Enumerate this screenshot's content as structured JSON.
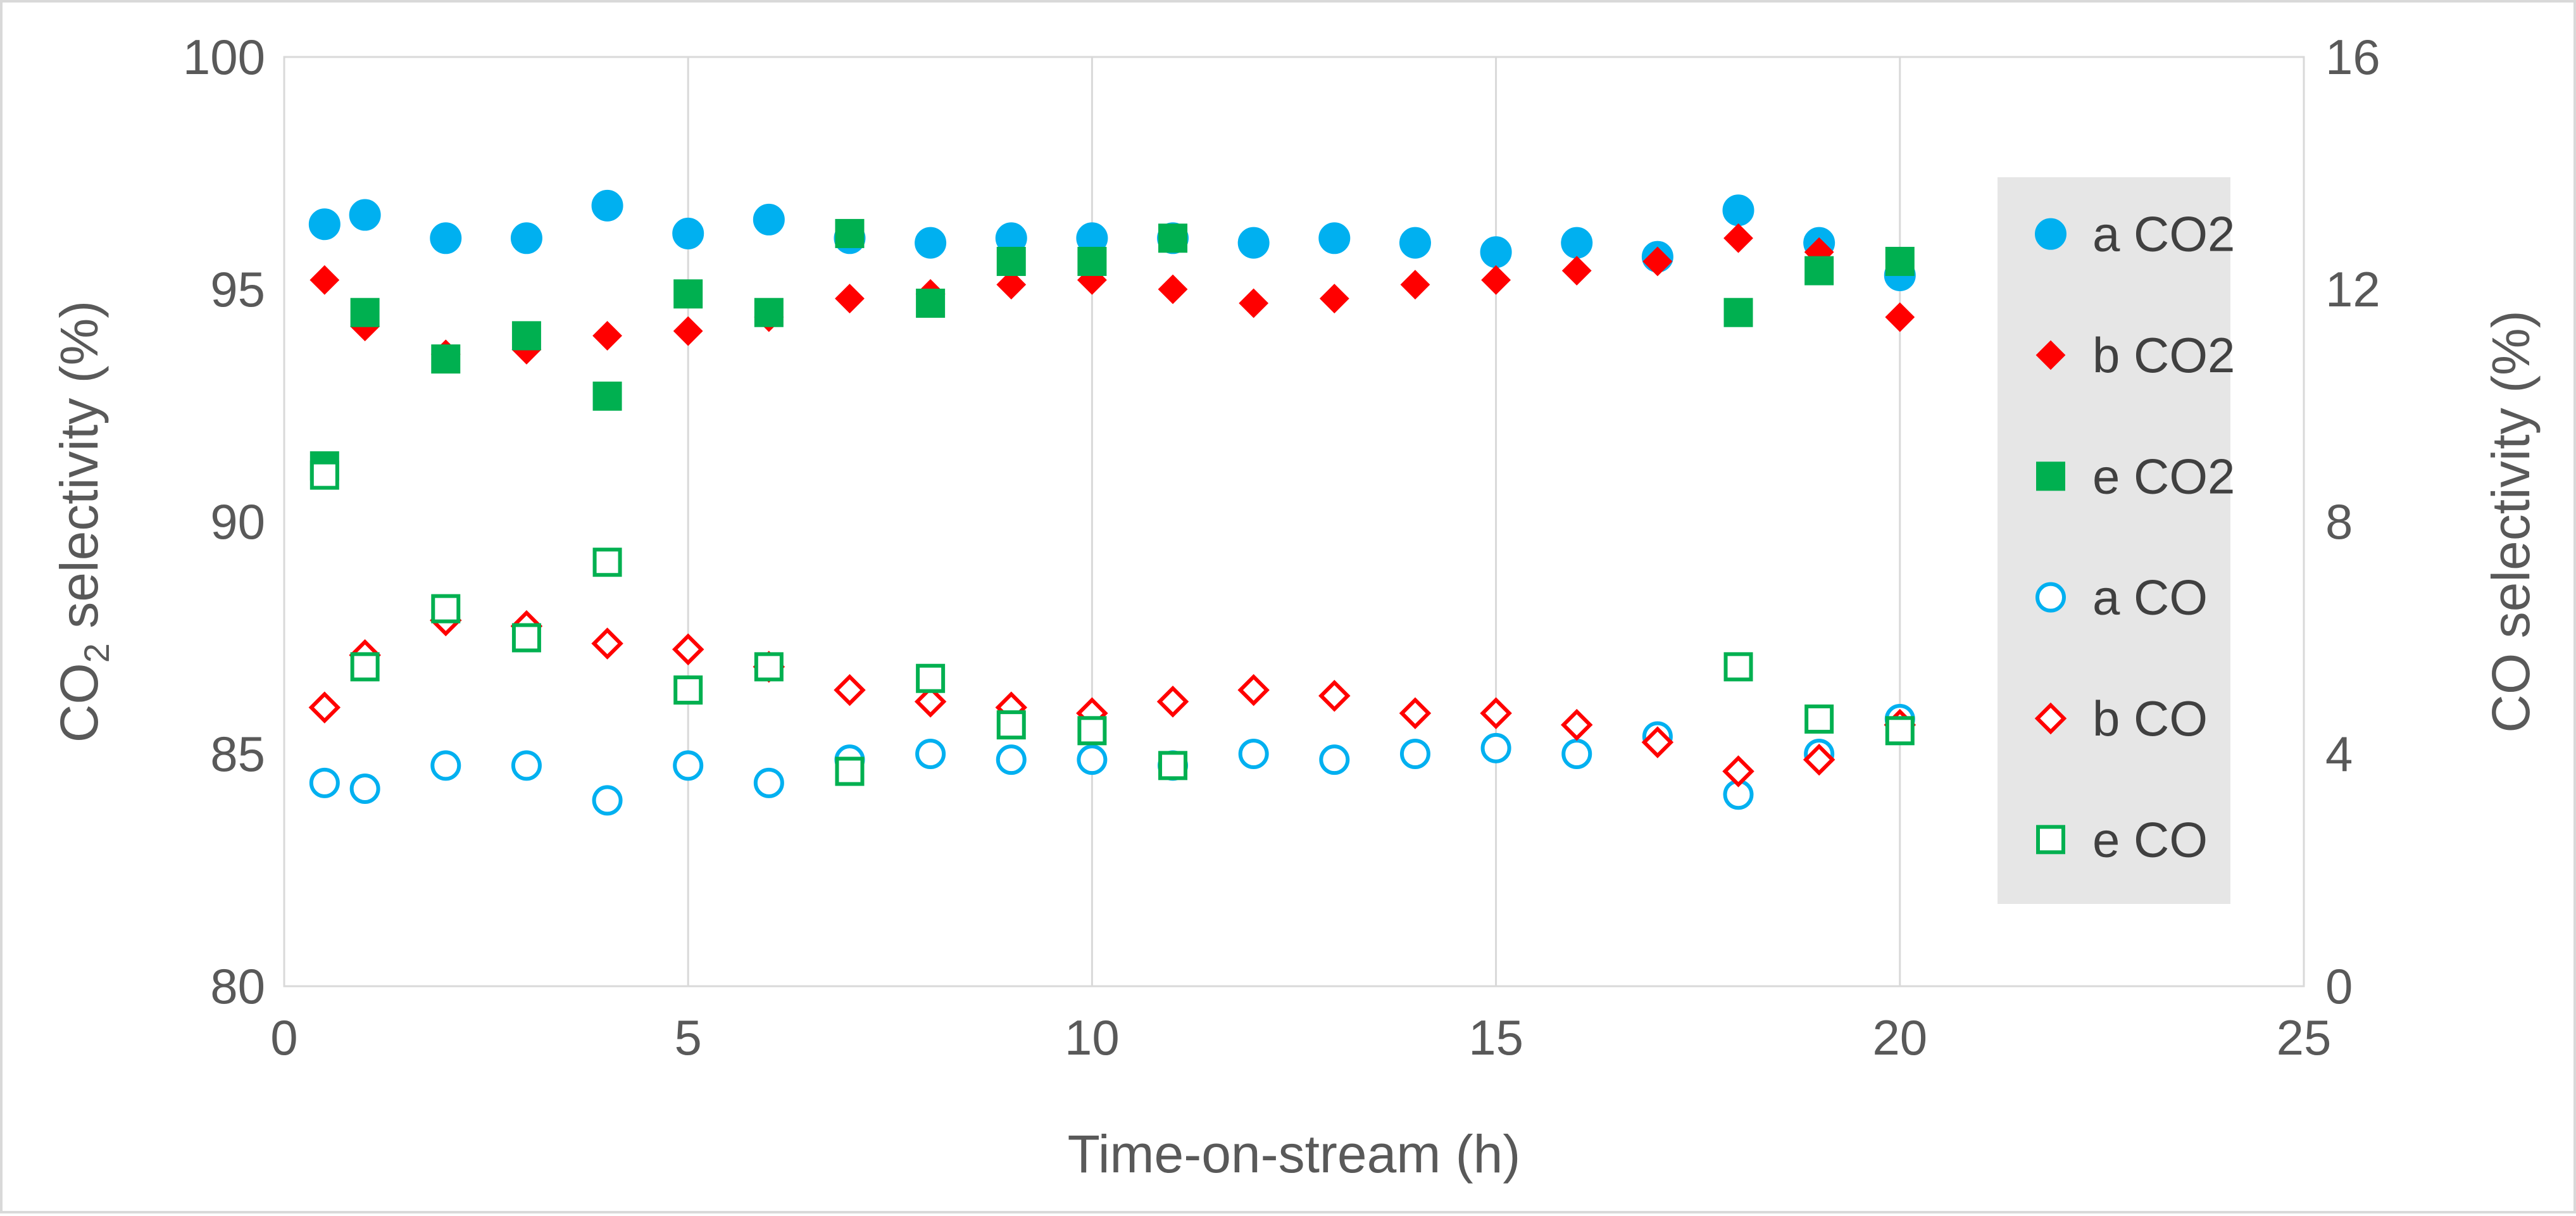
{
  "chart_data": {
    "type": "scatter",
    "title": "",
    "xlabel": "Time-on-stream (h)",
    "ylabel_left": {
      "base": "CO",
      "sub": "2",
      "rest": " selectivity (%)"
    },
    "ylabel_right": "CO selectivity (%)",
    "xlim": [
      0,
      25
    ],
    "ylim_left": [
      80,
      100
    ],
    "ylim_right": [
      0,
      16
    ],
    "x_ticks": [
      "0",
      "5",
      "10",
      "15",
      "20",
      "25"
    ],
    "y_left_ticks": [
      "80",
      "85",
      "90",
      "95",
      "100"
    ],
    "y_right_ticks": [
      "0",
      "4",
      "8",
      "12",
      "16"
    ],
    "grid": "vertical",
    "legend_position": "right",
    "series": [
      {
        "name": "a CO2",
        "axis": "left",
        "marker": "circle",
        "filled": true,
        "color": "#00b0f0",
        "x": [
          0.5,
          1,
          2,
          3,
          4,
          5,
          6,
          7,
          8,
          9,
          10,
          11,
          12,
          13,
          14,
          15,
          16,
          17,
          18,
          19,
          20
        ],
        "y": [
          96.4,
          96.6,
          96.1,
          96.1,
          96.8,
          96.2,
          96.5,
          96.1,
          96.0,
          96.1,
          96.1,
          96.1,
          96.0,
          96.1,
          96.0,
          95.8,
          96.0,
          95.7,
          96.7,
          96.0,
          95.3
        ]
      },
      {
        "name": "b CO2",
        "axis": "left",
        "marker": "diamond",
        "filled": true,
        "color": "#ff0000",
        "x": [
          0.5,
          1,
          2,
          3,
          4,
          5,
          6,
          7,
          8,
          9,
          10,
          11,
          12,
          13,
          14,
          15,
          16,
          17,
          18,
          19,
          20
        ],
        "y": [
          95.2,
          94.2,
          93.6,
          93.7,
          94.0,
          94.1,
          94.4,
          94.8,
          94.9,
          95.1,
          95.2,
          95.0,
          94.7,
          94.8,
          95.1,
          95.2,
          95.4,
          95.6,
          96.1,
          95.8,
          94.4
        ]
      },
      {
        "name": "e CO2",
        "axis": "left",
        "marker": "square",
        "filled": true,
        "color": "#00b050",
        "x": [
          0.5,
          1,
          2,
          3,
          4,
          5,
          6,
          7,
          8,
          9,
          10,
          11,
          18,
          19,
          20
        ],
        "y": [
          91.2,
          94.5,
          93.5,
          94.0,
          92.7,
          94.9,
          94.5,
          96.2,
          94.7,
          95.6,
          95.6,
          96.1,
          94.5,
          95.4,
          95.6
        ]
      },
      {
        "name": "a CO",
        "axis": "right",
        "marker": "circle",
        "filled": false,
        "color": "#00b0f0",
        "x": [
          0.5,
          1,
          2,
          3,
          4,
          5,
          6,
          7,
          8,
          9,
          10,
          11,
          12,
          13,
          14,
          15,
          16,
          17,
          18,
          19,
          20
        ],
        "y": [
          3.5,
          3.4,
          3.8,
          3.8,
          3.2,
          3.8,
          3.5,
          3.9,
          4.0,
          3.9,
          3.9,
          3.8,
          4.0,
          3.9,
          4.0,
          4.1,
          4.0,
          4.3,
          3.3,
          4.0,
          4.6
        ]
      },
      {
        "name": "b CO",
        "axis": "right",
        "marker": "diamond",
        "filled": false,
        "color": "#ff0000",
        "x": [
          0.5,
          1,
          2,
          3,
          4,
          5,
          6,
          7,
          8,
          9,
          10,
          11,
          12,
          13,
          14,
          15,
          16,
          17,
          18,
          19,
          20
        ],
        "y": [
          4.8,
          5.7,
          6.3,
          6.2,
          5.9,
          5.8,
          5.5,
          5.1,
          4.9,
          4.8,
          4.7,
          4.9,
          5.1,
          5.0,
          4.7,
          4.7,
          4.5,
          4.2,
          3.7,
          3.9,
          4.5
        ]
      },
      {
        "name": "e CO",
        "axis": "right",
        "marker": "square",
        "filled": false,
        "color": "#00b050",
        "x": [
          0.5,
          1,
          2,
          3,
          4,
          5,
          6,
          7,
          8,
          9,
          10,
          11,
          18,
          19,
          20
        ],
        "y": [
          8.8,
          5.5,
          6.5,
          6.0,
          7.3,
          5.1,
          5.5,
          3.7,
          5.3,
          4.5,
          4.4,
          3.8,
          5.5,
          4.6,
          4.4
        ]
      }
    ]
  }
}
